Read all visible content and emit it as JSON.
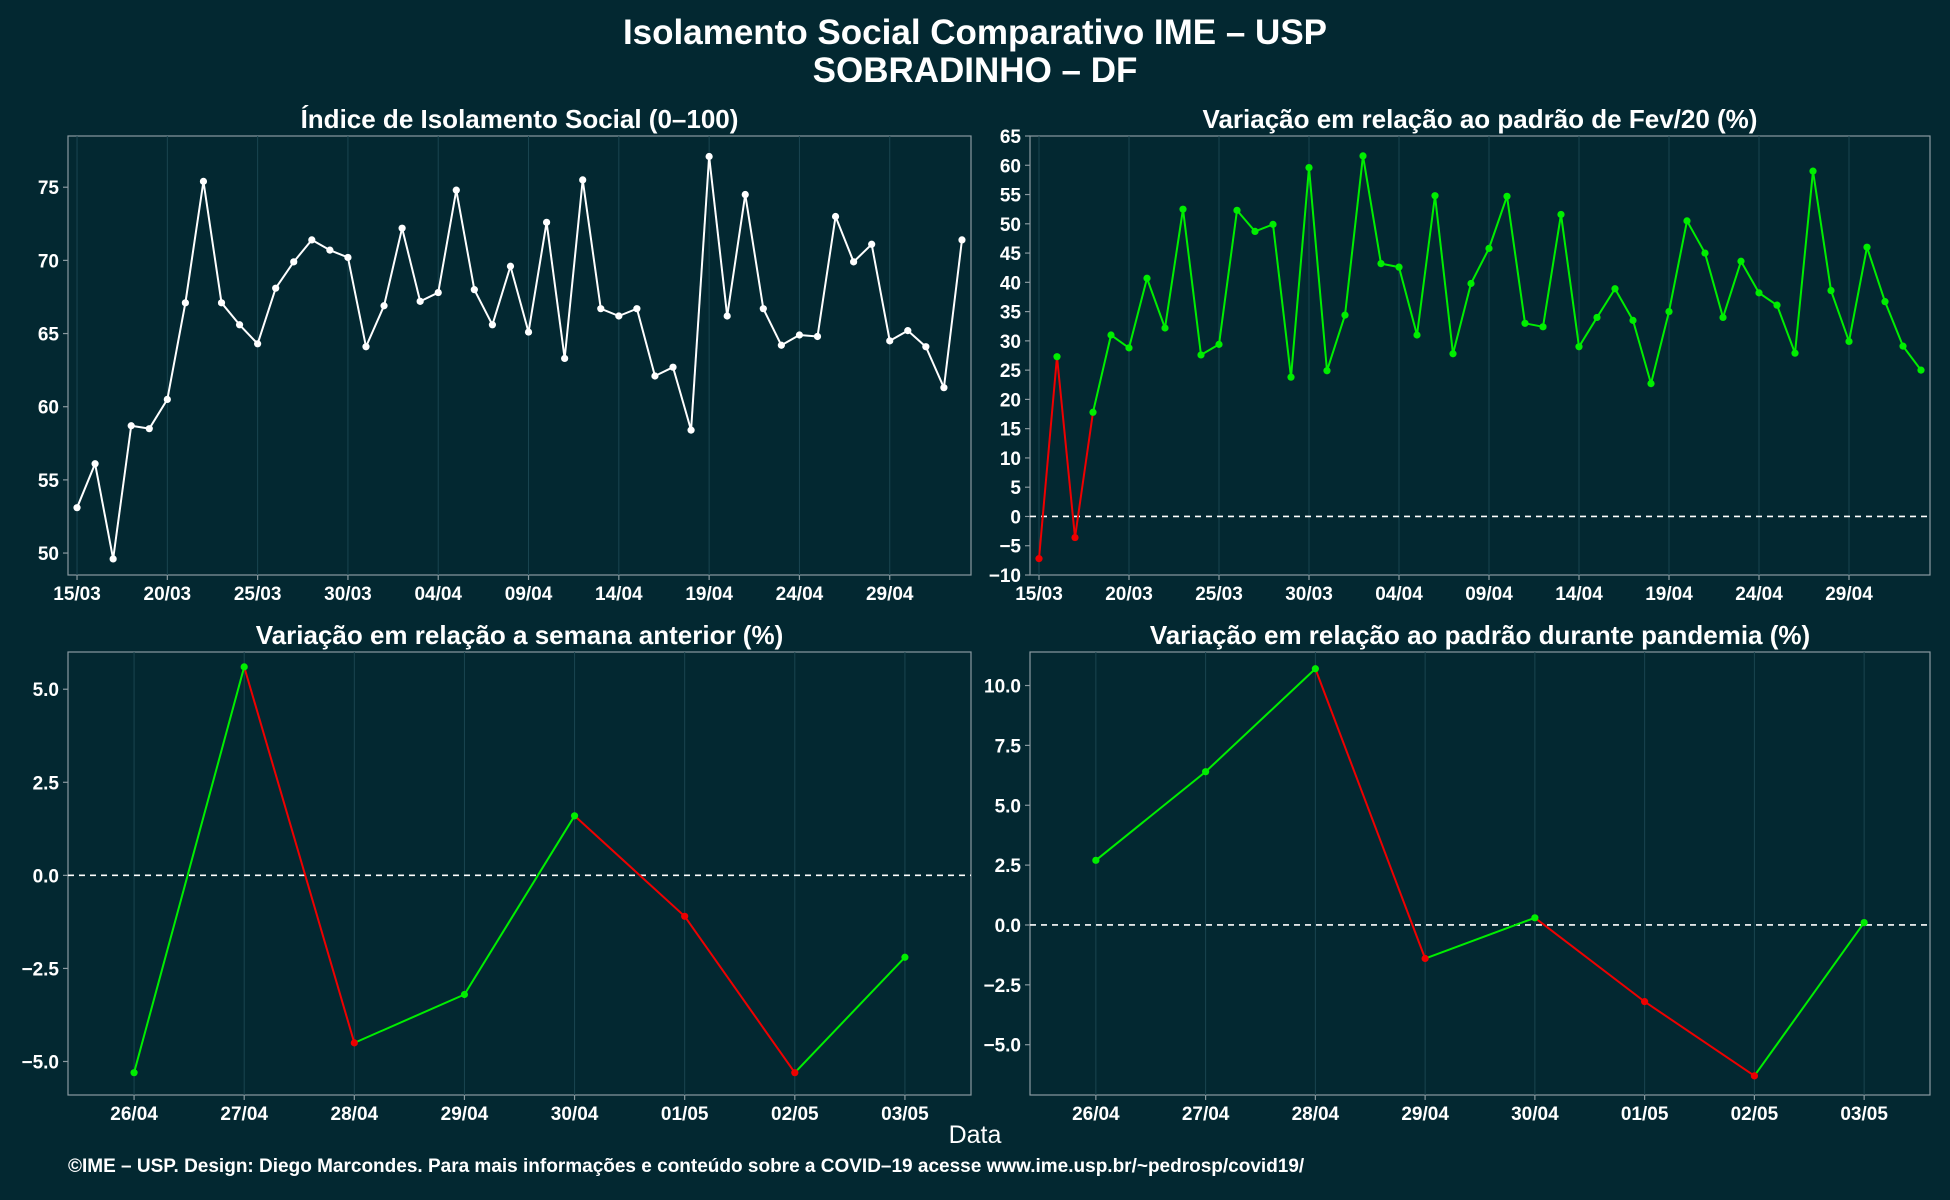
{
  "title_line1": "Isolamento Social Comparativo IME – USP",
  "title_line2": "SOBRADINHO – DF",
  "x_axis_label": "Data",
  "caption": "©IME – USP. Design: Diego Marcondes. Para mais informações e conteúdo sobre a COVID–19 acesse www.ime.usp.br/~pedrosp/covid19/",
  "colors": {
    "background": "#032831",
    "white_line": "#ffffff",
    "positive": "#00ee00",
    "negative": "#ee0000",
    "grid": "#1a4550",
    "frame": "#8a9aa0"
  },
  "chart_data": [
    {
      "type": "line",
      "title": "Índice de Isolamento Social (0–100)",
      "xlabel": "Data",
      "ylabel": "",
      "ylim": [
        48.5,
        78.5
      ],
      "yticks": [
        50,
        55,
        60,
        65,
        70,
        75
      ],
      "ytick_labels": [
        "50",
        "55",
        "60",
        "65",
        "70",
        "75"
      ],
      "x_range": [
        -0.5,
        49.5
      ],
      "xticks": [
        0,
        5,
        10,
        15,
        20,
        25,
        30,
        35,
        40,
        45
      ],
      "xtick_labels": [
        "15/03",
        "20/03",
        "25/03",
        "30/03",
        "04/04",
        "09/04",
        "14/04",
        "19/04",
        "24/04",
        "29/04"
      ],
      "color_mode": "single",
      "zero_line": false,
      "series": [
        {
          "values": [
            53.1,
            56.1,
            49.6,
            58.7,
            58.5,
            60.5,
            67.1,
            75.4,
            67.1,
            65.6,
            64.3,
            68.1,
            69.9,
            71.4,
            70.7,
            70.2,
            64.1,
            66.9,
            72.2,
            67.2,
            67.8,
            74.8,
            68.0,
            65.6,
            69.6,
            65.1,
            72.6,
            63.3,
            75.5,
            66.7,
            66.2,
            66.7,
            62.1,
            62.7,
            58.4,
            77.1,
            66.2,
            74.5,
            66.7,
            64.2,
            64.9,
            64.8,
            73.0,
            69.9,
            71.1,
            64.5,
            65.2,
            64.1,
            61.3,
            71.4
          ]
        }
      ]
    },
    {
      "type": "line",
      "title": "Variação em relação ao padrão de Fev/20 (%)",
      "xlabel": "Data",
      "ylabel": "",
      "ylim": [
        -10,
        65
      ],
      "yticks": [
        -10,
        -5,
        0,
        5,
        10,
        15,
        20,
        25,
        30,
        35,
        40,
        45,
        50,
        55,
        60,
        65
      ],
      "ytick_labels": [
        "−10",
        "−5",
        "0",
        "5",
        "10",
        "15",
        "20",
        "25",
        "30",
        "35",
        "40",
        "45",
        "50",
        "55",
        "60",
        "65"
      ],
      "x_range": [
        -0.5,
        49.5
      ],
      "xticks": [
        0,
        5,
        10,
        15,
        20,
        25,
        30,
        35,
        40,
        45
      ],
      "xtick_labels": [
        "15/03",
        "20/03",
        "25/03",
        "30/03",
        "04/04",
        "09/04",
        "14/04",
        "19/04",
        "24/04",
        "29/04"
      ],
      "color_mode": "sign",
      "zero_line": true,
      "series": [
        {
          "values": [
            -7.2,
            27.3,
            -3.6,
            17.8,
            31.0,
            28.8,
            40.7,
            32.2,
            52.5,
            27.6,
            29.4,
            52.3,
            48.7,
            49.9,
            23.8,
            59.6,
            24.9,
            34.4,
            61.6,
            43.2,
            42.6,
            31.0,
            54.8,
            27.8,
            39.8,
            45.8,
            54.7,
            33.0,
            32.4,
            51.6,
            29.0,
            34.0,
            38.9,
            33.5,
            22.7,
            35.0,
            50.5,
            45.0,
            34.0,
            43.6,
            38.2,
            36.1,
            27.9,
            59.0,
            38.6,
            29.9,
            46.0,
            36.7,
            29.1,
            25.0
          ]
        }
      ]
    },
    {
      "type": "line",
      "title": "Variação em relação a semana anterior (%)",
      "xlabel": "Data",
      "ylabel": "",
      "ylim": [
        -5.9,
        6.0
      ],
      "yticks": [
        -5.0,
        -2.5,
        0.0,
        2.5,
        5.0
      ],
      "ytick_labels": [
        "−5.0",
        "−2.5",
        "0.0",
        "2.5",
        "5.0"
      ],
      "x_range": [
        -0.6,
        7.6
      ],
      "xticks": [
        0,
        1,
        2,
        3,
        4,
        5,
        6,
        7
      ],
      "xtick_labels": [
        "26/04",
        "27/04",
        "28/04",
        "29/04",
        "30/04",
        "01/05",
        "02/05",
        "03/05"
      ],
      "color_mode": "trend",
      "zero_line": true,
      "series": [
        {
          "values": [
            -5.3,
            5.6,
            -4.5,
            -3.2,
            1.6,
            -1.1,
            -5.3,
            -2.2
          ]
        }
      ]
    },
    {
      "type": "line",
      "title": "Variação em relação ao padrão durante pandemia (%)",
      "xlabel": "Data",
      "ylabel": "",
      "ylim": [
        -7.1,
        11.4
      ],
      "yticks": [
        -5.0,
        -2.5,
        0.0,
        2.5,
        5.0,
        7.5,
        10.0
      ],
      "ytick_labels": [
        "−5.0",
        "−2.5",
        "0.0",
        "2.5",
        "5.0",
        "7.5",
        "10.0"
      ],
      "x_range": [
        -0.6,
        7.6
      ],
      "xticks": [
        0,
        1,
        2,
        3,
        4,
        5,
        6,
        7
      ],
      "xtick_labels": [
        "26/04",
        "27/04",
        "28/04",
        "29/04",
        "30/04",
        "01/05",
        "02/05",
        "03/05"
      ],
      "color_mode": "trend",
      "zero_line": true,
      "series": [
        {
          "values": [
            2.7,
            6.4,
            10.7,
            -1.4,
            0.3,
            -3.2,
            -6.3,
            0.1
          ]
        }
      ]
    }
  ]
}
